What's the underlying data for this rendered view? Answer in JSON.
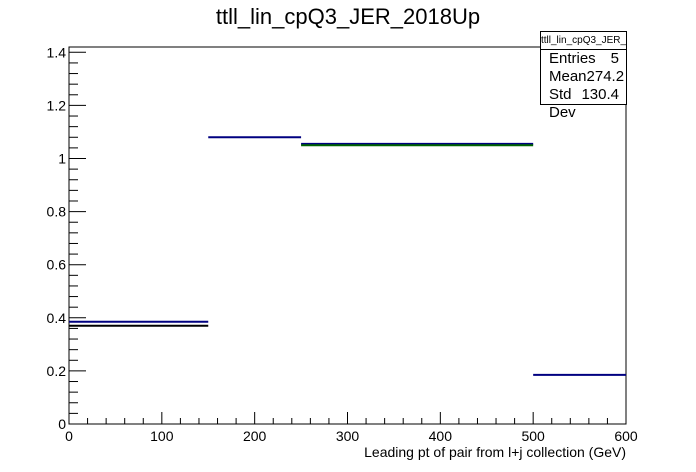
{
  "title": "ttll_lin_cpQ3_JER_2018Up",
  "stats": {
    "name": "ttll_lin_cpQ3_JER_2018Up",
    "rows": [
      {
        "label": "Entries",
        "value": "5"
      },
      {
        "label": "Mean",
        "value": "274.2"
      },
      {
        "label": "Std Dev",
        "value": "130.4"
      }
    ]
  },
  "chart_data": {
    "type": "histogram",
    "title": "ttll_lin_cpQ3_JER_2018Up",
    "xlabel": "Leading pt of pair from l+j collection (GeV)",
    "ylabel": "",
    "xlim": [
      0,
      600
    ],
    "ylim": [
      0,
      1.42
    ],
    "xticks": [
      0,
      100,
      200,
      300,
      400,
      500,
      600
    ],
    "yticks": [
      0,
      0.2,
      0.4,
      0.6,
      0.8,
      1,
      1.2,
      1.4
    ],
    "grid": false,
    "series": [
      {
        "color": "#000080",
        "bins": [
          {
            "x0": 0,
            "x1": 150,
            "y": 0.385
          },
          {
            "x0": 150,
            "x1": 250,
            "y": 1.08
          },
          {
            "x0": 250,
            "x1": 500,
            "y": 1.055
          },
          {
            "x0": 500,
            "x1": 600,
            "y": 0.185
          }
        ]
      },
      {
        "color": "#000000",
        "bins": [
          {
            "x0": 0,
            "x1": 150,
            "y": 0.37
          }
        ]
      },
      {
        "color": "#006400",
        "bins": [
          {
            "x0": 250,
            "x1": 500,
            "y": 1.05
          }
        ]
      }
    ]
  }
}
